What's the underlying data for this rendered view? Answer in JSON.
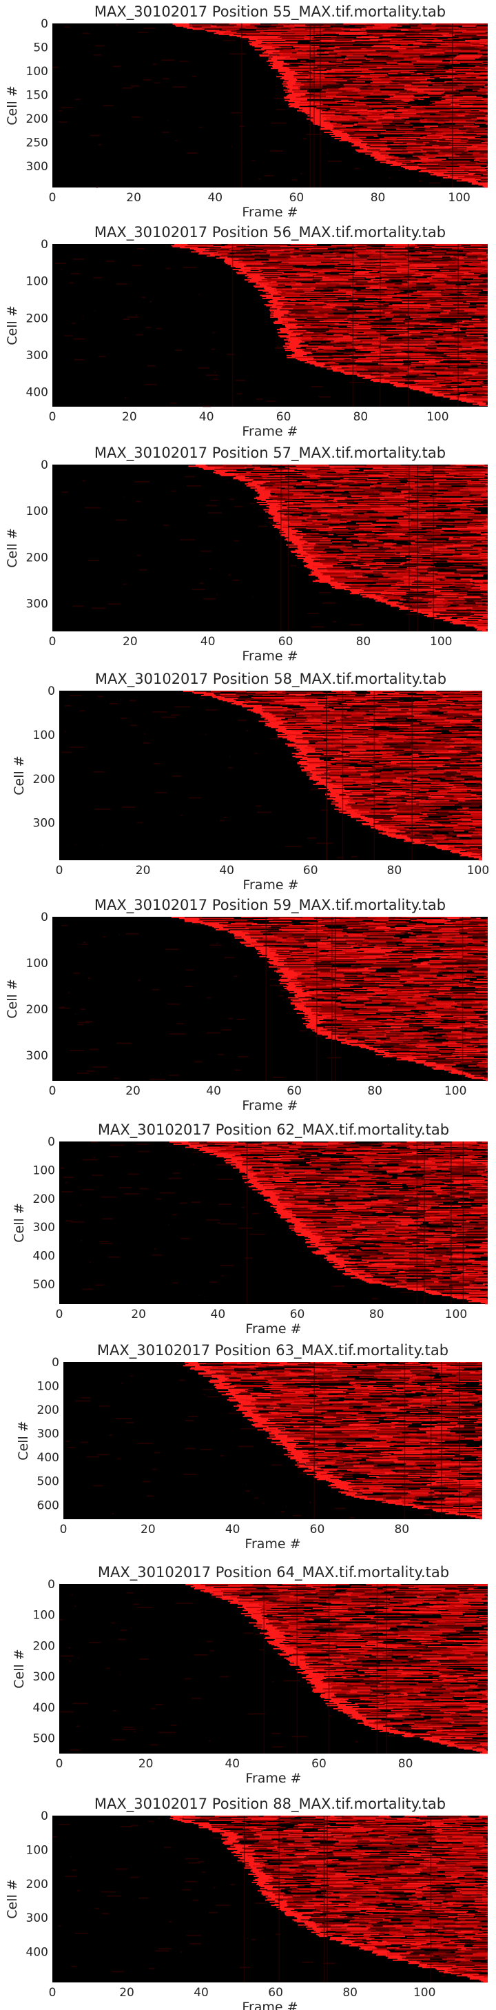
{
  "figure": {
    "colormap": {
      "background": "#000000",
      "low": "#3a0000",
      "mid": "#b50000",
      "high": "#ff1a1a"
    },
    "text_color": "#262626"
  },
  "chart_data": [
    {
      "type": "heatmap",
      "title": "MAX_30102017 Position 55_MAX.tif.mortality.tab",
      "xlabel": "Frame #",
      "ylabel": "Cell #",
      "xlim": [
        0,
        107
      ],
      "ylim": [
        0,
        345
      ],
      "xticks": [
        0,
        20,
        40,
        60,
        80,
        100
      ],
      "yticks": [
        0,
        50,
        100,
        150,
        200,
        250,
        300
      ],
      "death_frame_quantiles": {
        "p": [
          0,
          0.1,
          0.3,
          0.5,
          0.7,
          0.85,
          1.0
        ],
        "frame": [
          28,
          49,
          56,
          59,
          70,
          82,
          107
        ]
      }
    },
    {
      "type": "heatmap",
      "title": "MAX_30102017 Position 56_MAX.tif.mortality.tab",
      "xlabel": "Frame #",
      "ylabel": "Cell #",
      "xlim": [
        0,
        113
      ],
      "ylim": [
        0,
        440
      ],
      "xticks": [
        0,
        20,
        40,
        60,
        80,
        100
      ],
      "yticks": [
        0,
        100,
        200,
        300,
        400
      ],
      "death_frame_quantiles": {
        "p": [
          0,
          0.1,
          0.3,
          0.5,
          0.7,
          0.85,
          1.0
        ],
        "frame": [
          30,
          45,
          55,
          59,
          62,
          85,
          113
        ]
      }
    },
    {
      "type": "heatmap",
      "title": "MAX_30102017 Position 57_MAX.tif.mortality.tab",
      "xlabel": "Frame #",
      "ylabel": "Cell #",
      "xlim": [
        0,
        112
      ],
      "ylim": [
        0,
        360
      ],
      "xticks": [
        0,
        20,
        40,
        60,
        80,
        100
      ],
      "yticks": [
        0,
        100,
        200,
        300
      ],
      "death_frame_quantiles": {
        "p": [
          0,
          0.1,
          0.3,
          0.5,
          0.7,
          0.85,
          1.0
        ],
        "frame": [
          35,
          50,
          56,
          62,
          68,
          88,
          112
        ]
      }
    },
    {
      "type": "heatmap",
      "title": "MAX_30102017 Position 58_MAX.tif.mortality.tab",
      "xlabel": "Frame #",
      "ylabel": "Cell #",
      "xlim": [
        0,
        101
      ],
      "ylim": [
        0,
        385
      ],
      "xticks": [
        0,
        20,
        40,
        60,
        80,
        100
      ],
      "yticks": [
        0,
        100,
        200,
        300
      ],
      "death_frame_quantiles": {
        "p": [
          0,
          0.1,
          0.3,
          0.5,
          0.7,
          0.85,
          1.0
        ],
        "frame": [
          30,
          45,
          55,
          60,
          67,
          78,
          101
        ]
      }
    },
    {
      "type": "heatmap",
      "title": "MAX_30102017 Position 59_MAX.tif.mortality.tab",
      "xlabel": "Frame #",
      "ylabel": "Cell #",
      "xlim": [
        0,
        108
      ],
      "ylim": [
        0,
        355
      ],
      "xticks": [
        0,
        20,
        40,
        60,
        80,
        100
      ],
      "yticks": [
        0,
        100,
        200,
        300
      ],
      "death_frame_quantiles": {
        "p": [
          0,
          0.1,
          0.3,
          0.5,
          0.7,
          0.85,
          1.0
        ],
        "frame": [
          30,
          45,
          55,
          60,
          64,
          83,
          108
        ]
      }
    },
    {
      "type": "heatmap",
      "title": "MAX_30102017 Position 62_MAX.tif.mortality.tab",
      "xlabel": "Frame #",
      "ylabel": "Cell #",
      "xlim": [
        0,
        108
      ],
      "ylim": [
        0,
        570
      ],
      "xticks": [
        0,
        20,
        40,
        60,
        80,
        100
      ],
      "yticks": [
        0,
        100,
        200,
        300,
        400,
        500
      ],
      "death_frame_quantiles": {
        "p": [
          0,
          0.1,
          0.3,
          0.5,
          0.7,
          0.85,
          1.0
        ],
        "frame": [
          28,
          42,
          50,
          58,
          66,
          75,
          108
        ]
      }
    },
    {
      "type": "heatmap",
      "title": "MAX_30102017 Position 63_MAX.tif.mortality.tab",
      "xlabel": "Frame #",
      "ylabel": "Cell #",
      "xlim": [
        0,
        99
      ],
      "ylim": [
        0,
        660
      ],
      "xticks": [
        0,
        20,
        40,
        60,
        80
      ],
      "yticks": [
        0,
        100,
        200,
        300,
        400,
        500,
        600
      ],
      "death_frame_quantiles": {
        "p": [
          0,
          0.1,
          0.3,
          0.5,
          0.7,
          0.85,
          1.0
        ],
        "frame": [
          28,
          35,
          42,
          50,
          58,
          68,
          99
        ]
      }
    },
    {
      "type": "heatmap",
      "title": "MAX_30102017 Position 64_MAX.tif.mortality.tab",
      "xlabel": "Frame #",
      "ylabel": "Cell #",
      "xlim": [
        0,
        99
      ],
      "ylim": [
        0,
        550
      ],
      "xticks": [
        0,
        20,
        40,
        60,
        80
      ],
      "yticks": [
        0,
        100,
        200,
        300,
        400,
        500
      ],
      "death_frame_quantiles": {
        "p": [
          0,
          0.1,
          0.3,
          0.5,
          0.7,
          0.85,
          1.0
        ],
        "frame": [
          29,
          40,
          48,
          55,
          62,
          72,
          99
        ]
      }
    },
    {
      "type": "heatmap",
      "title": "MAX_30102017 Position 88_MAX.tif.mortality.tab",
      "xlabel": "Frame #",
      "ylabel": "Cell #",
      "xlim": [
        0,
        117
      ],
      "ylim": [
        0,
        490
      ],
      "xticks": [
        0,
        20,
        40,
        60,
        80,
        100
      ],
      "yticks": [
        0,
        100,
        200,
        300,
        400
      ],
      "death_frame_quantiles": {
        "p": [
          0,
          0.1,
          0.3,
          0.5,
          0.7,
          0.85,
          1.0
        ],
        "frame": [
          30,
          45,
          52,
          58,
          70,
          90,
          117
        ]
      }
    }
  ]
}
